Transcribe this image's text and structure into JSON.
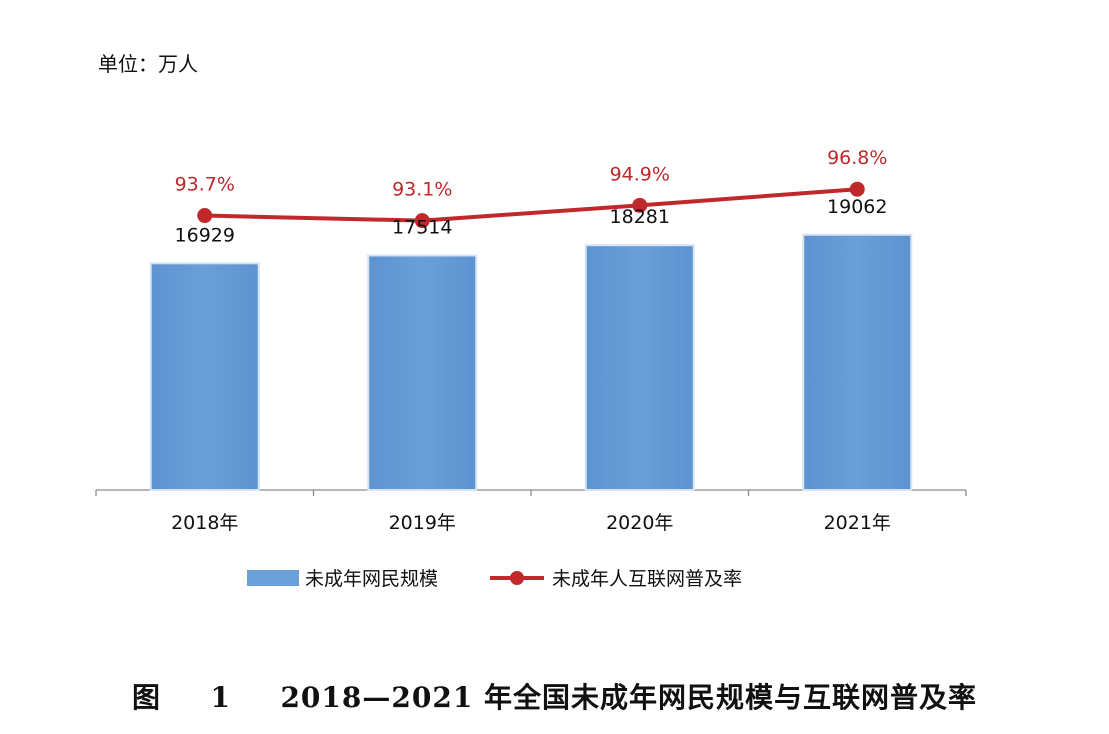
{
  "unit": "单位：万人",
  "caption": {
    "prefix": "图",
    "number": "1",
    "title": "2018—2021 年全国未成年网民规模与互联网普及率"
  },
  "chart_data": {
    "type": "bar",
    "categories": [
      "2018年",
      "2019年",
      "2020年",
      "2021年"
    ],
    "series": [
      {
        "name": "未成年网民规模",
        "type": "bar",
        "color": "#6a9fd8",
        "values": [
          16929,
          17514,
          18281,
          19062
        ],
        "labels": [
          "16929",
          "17514",
          "18281",
          "19062"
        ]
      },
      {
        "name": "未成年人互联网普及率",
        "type": "line",
        "color": "#c0282b",
        "values": [
          93.7,
          93.1,
          94.9,
          96.8
        ],
        "labels": [
          "93.7%",
          "93.1%",
          "94.9%",
          "96.8%"
        ]
      }
    ],
    "legend_position": "bottom",
    "grid": false
  }
}
